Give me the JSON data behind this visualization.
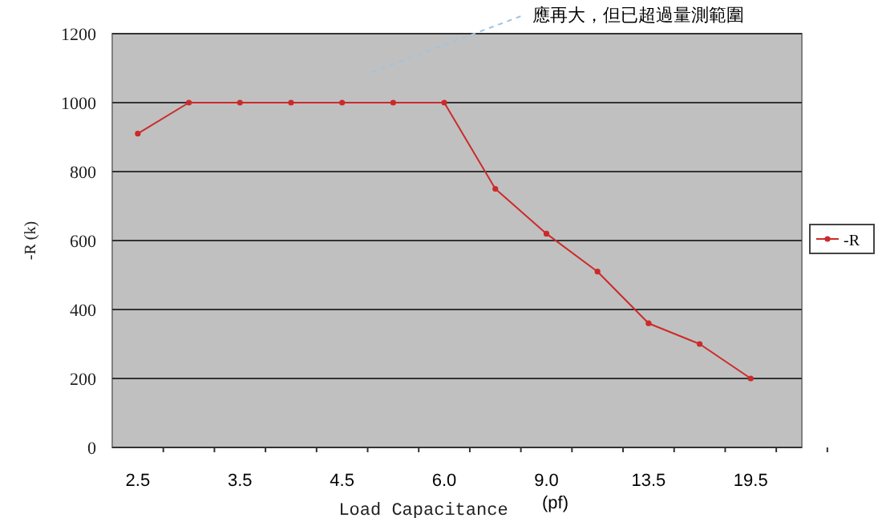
{
  "chart_data": {
    "type": "line",
    "xlabel": "Load Capacitance",
    "ylabel": "-R (k)",
    "annotations": [
      "應再大，但已超過量測範圍",
      "(pf)"
    ],
    "categories": [
      "2.5",
      null,
      "3.5",
      null,
      "4.5",
      null,
      "6.0",
      null,
      "9.0",
      null,
      "13.5",
      null,
      "19.5"
    ],
    "series": [
      {
        "name": "-R",
        "color": "#cc2a2a",
        "values": [
          910,
          1000,
          1000,
          1000,
          1000,
          1000,
          1000,
          750,
          620,
          510,
          360,
          300,
          200
        ]
      }
    ],
    "ylim": [
      0,
      1200
    ],
    "yticks": [
      0,
      200,
      400,
      600,
      800,
      1000,
      1200
    ],
    "grid": "y",
    "legend": "right",
    "marker": "circle",
    "line_style": "solid"
  }
}
